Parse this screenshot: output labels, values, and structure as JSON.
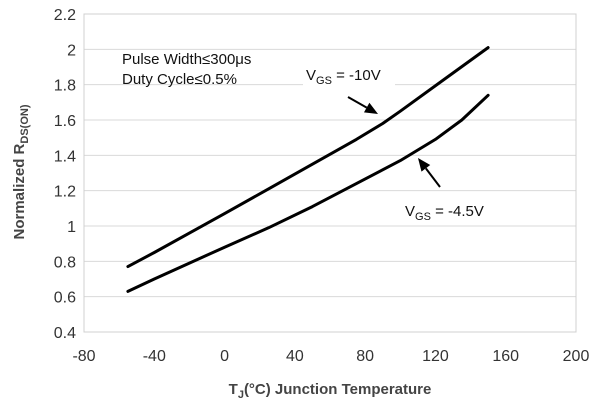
{
  "chart_data": {
    "type": "line",
    "xlabel": {
      "main": "T",
      "sub": "J",
      "rest": "(°C) Junction Temperature"
    },
    "ylabel": {
      "main": "Normalized R",
      "sub": "DS(ON)"
    },
    "xlim": [
      -80,
      200
    ],
    "ylim": [
      0.4,
      2.2
    ],
    "xticks": [
      -80,
      -40,
      0,
      40,
      80,
      120,
      160,
      200
    ],
    "yticks": [
      0.4,
      0.6,
      0.8,
      1,
      1.2,
      1.4,
      1.6,
      1.8,
      2,
      2.2
    ],
    "xtick_labels": [
      "-80",
      "-40",
      "0",
      "40",
      "80",
      "120",
      "160",
      "200"
    ],
    "ytick_labels": [
      "0.4",
      "0.6",
      "0.8",
      "1",
      "1.2",
      "1.4",
      "1.6",
      "1.8",
      "2",
      "2.2"
    ],
    "grid": "horizontal",
    "notes": [
      "Pulse Width≤300μs",
      "Duty Cycle≤0.5%"
    ],
    "series": [
      {
        "label_main": "V",
        "label_sub": "GS",
        "label_rest": " = -10V",
        "x": [
          -55,
          -40,
          -20,
          0,
          25,
          50,
          75,
          90,
          100,
          125,
          150
        ],
        "y": [
          0.77,
          0.85,
          0.96,
          1.07,
          1.21,
          1.35,
          1.49,
          1.58,
          1.65,
          1.83,
          2.01
        ]
      },
      {
        "label_main": "V",
        "label_sub": "GS",
        "label_rest": " = -4.5V",
        "x": [
          -55,
          -40,
          -20,
          0,
          25,
          50,
          75,
          100,
          120,
          135,
          150
        ],
        "y": [
          0.63,
          0.7,
          0.79,
          0.88,
          0.99,
          1.11,
          1.24,
          1.37,
          1.49,
          1.6,
          1.74
        ]
      }
    ]
  }
}
